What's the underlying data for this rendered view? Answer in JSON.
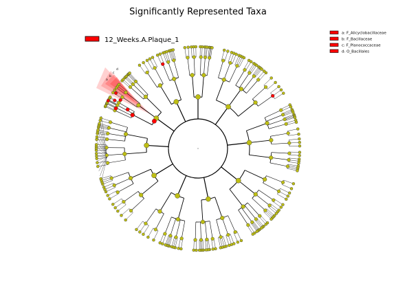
{
  "title": "Significantly Represented Taxa",
  "class_legend": {
    "label": "12_Weeks.A.Plaque_1",
    "color": "#ff0000"
  },
  "taxa_legend": [
    {
      "key": "a: F_Alicyclobacillaceae",
      "color": "#ff0000"
    },
    {
      "key": "b: F_Bacillaceae",
      "color": "#ff0000"
    },
    {
      "key": "c: F_Planococcaceae",
      "color": "#ff0000"
    },
    {
      "key": "d: O_Bacillales",
      "color": "#ff0000"
    }
  ],
  "highlight_labels": [
    "a",
    "b",
    "c",
    "d"
  ],
  "colors": {
    "node_default": "#bebe14",
    "node_enriched": "#ff0000",
    "edge": "#000000"
  }
}
